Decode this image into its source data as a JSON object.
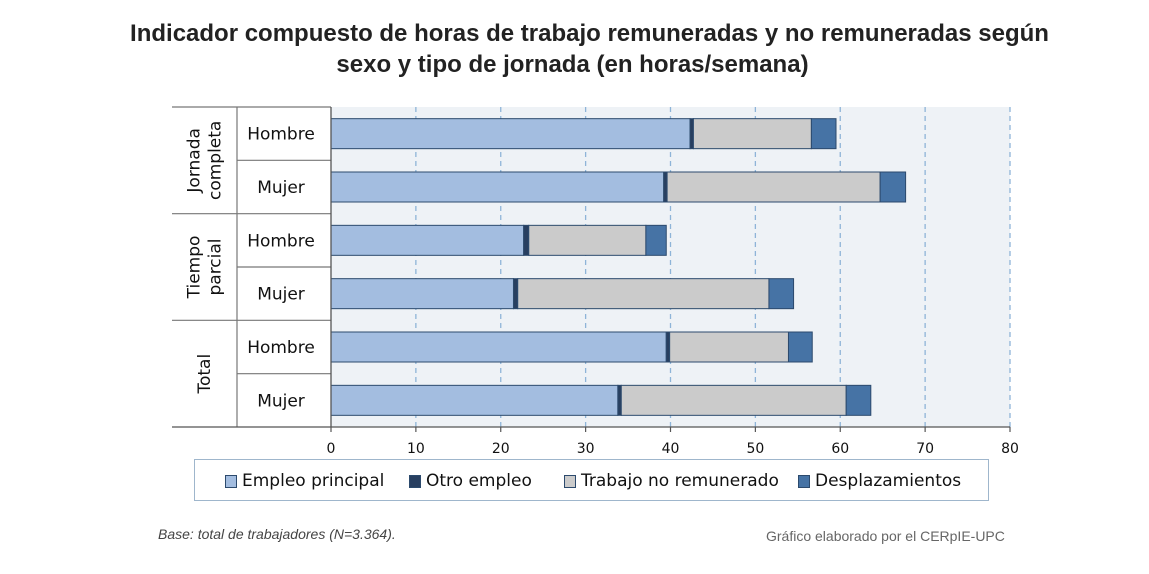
{
  "title_line1": "Indicador compuesto de horas de trabajo remuneradas y no remuneradas según",
  "title_line2": "sexo y tipo de jornada (en horas/semana)",
  "footer": {
    "base": "Base: total de trabajadores (N=3.364).",
    "credit": "Gráfico elaborado por el CERpIE-UPC"
  },
  "chart_data": {
    "type": "bar",
    "orientation": "horizontal",
    "stacked": true,
    "groups": [
      {
        "label_lines": [
          "Jornada",
          "completa"
        ],
        "categories": [
          "Hombre",
          "Mujer"
        ]
      },
      {
        "label_lines": [
          "Tiempo",
          "parcial"
        ],
        "categories": [
          "Hombre",
          "Mujer"
        ]
      },
      {
        "label_lines": [
          "Total"
        ],
        "categories": [
          "Hombre",
          "Mujer"
        ]
      }
    ],
    "series": [
      {
        "name": "Empleo principal",
        "color": "#a3bde0",
        "values": [
          42.3,
          39.2,
          22.7,
          21.5,
          39.5,
          33.8
        ]
      },
      {
        "name": "Otro empleo",
        "color": "#283f60",
        "values": [
          0.4,
          0.4,
          0.6,
          0.5,
          0.4,
          0.4
        ]
      },
      {
        "name": "Trabajo no remunerado",
        "color": "#cbcbcb",
        "values": [
          13.9,
          25.1,
          13.8,
          29.6,
          14.0,
          26.5
        ]
      },
      {
        "name": "Desplazamientos",
        "color": "#4673a5",
        "values": [
          2.9,
          3.0,
          2.4,
          2.9,
          2.8,
          2.9
        ]
      }
    ],
    "xlim": [
      0,
      80
    ],
    "xticks": [
      0,
      10,
      20,
      30,
      40,
      50,
      60,
      70,
      80
    ],
    "grid": "vertical dashed",
    "legend_position": "bottom"
  }
}
